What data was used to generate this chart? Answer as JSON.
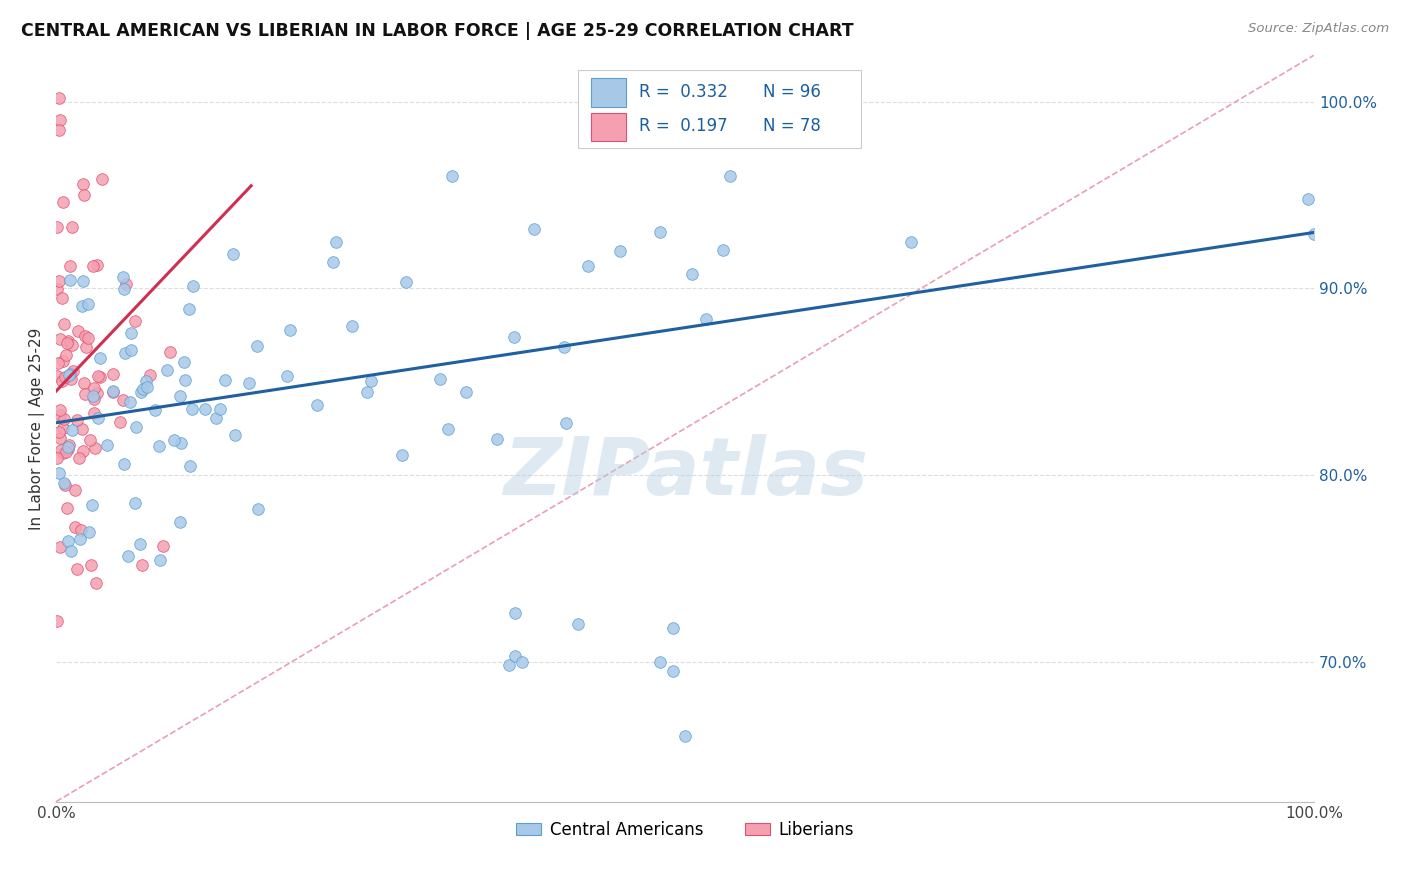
{
  "title": "CENTRAL AMERICAN VS LIBERIAN IN LABOR FORCE | AGE 25-29 CORRELATION CHART",
  "source": "Source: ZipAtlas.com",
  "ylabel": "In Labor Force | Age 25-29",
  "right_yticks": [
    "70.0%",
    "80.0%",
    "90.0%",
    "100.0%"
  ],
  "right_ytick_vals": [
    0.7,
    0.8,
    0.9,
    1.0
  ],
  "legend_label_blue": "Central Americans",
  "legend_label_pink": "Liberians",
  "blue_color": "#a8c8e8",
  "pink_color": "#f4a0b0",
  "blue_edge_color": "#5a9fd4",
  "pink_edge_color": "#e05070",
  "trendline_blue_color": "#2060a0",
  "trendline_pink_color": "#d03050",
  "diag_color": "#e8a0b0",
  "watermark": "ZIPatlas",
  "xlim": [
    0.0,
    1.0
  ],
  "ylim": [
    0.625,
    1.025
  ],
  "blue_trend_x": [
    0.0,
    1.0
  ],
  "blue_trend_y": [
    0.828,
    0.93
  ],
  "pink_trend_x": [
    0.0,
    0.155
  ],
  "pink_trend_y": [
    0.845,
    0.955
  ]
}
